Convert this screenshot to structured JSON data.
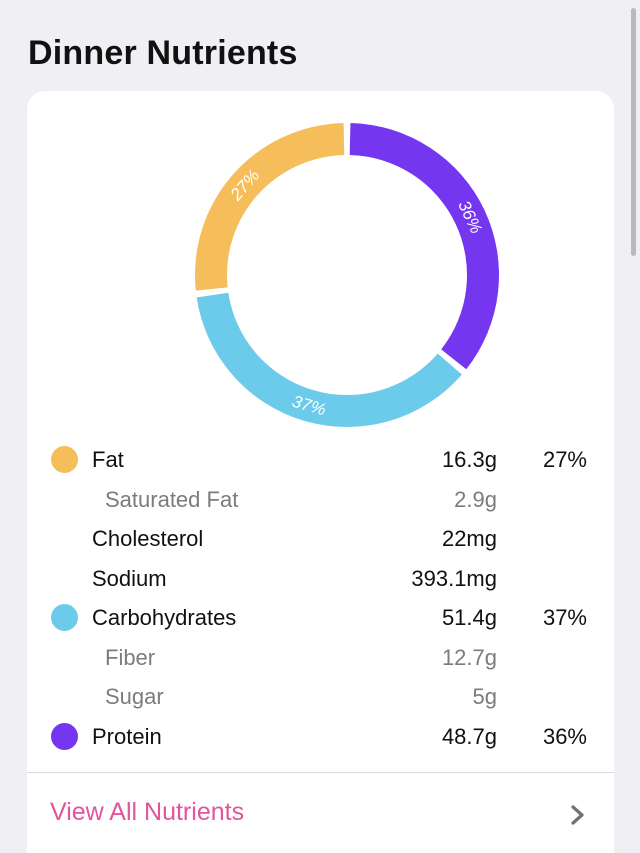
{
  "section": {
    "title": "Dinner Nutrients"
  },
  "colors": {
    "fat": "#f5be5b",
    "carbohydrates": "#6ccbea",
    "protein": "#7436ef",
    "link": "#e0559b",
    "chevron": "#707075"
  },
  "chart_data": {
    "type": "pie",
    "style": "donut",
    "slices": [
      {
        "label": "Protein",
        "value": 36,
        "display": "36%",
        "color": "#7436ef"
      },
      {
        "label": "Carbohydrates",
        "value": 37,
        "display": "37%",
        "color": "#6ccbea"
      },
      {
        "label": "Fat",
        "value": 27,
        "display": "27%",
        "color": "#f5be5b"
      }
    ]
  },
  "nutrients": [
    {
      "name": "Fat",
      "amount": "16.3g",
      "percent": "27%",
      "dot": "#f5be5b",
      "sub": false
    },
    {
      "name": "Saturated Fat",
      "amount": "2.9g",
      "percent": "",
      "dot": "",
      "sub": true
    },
    {
      "name": "Cholesterol",
      "amount": "22mg",
      "percent": "",
      "dot": "",
      "sub": false
    },
    {
      "name": "Sodium",
      "amount": "393.1mg",
      "percent": "",
      "dot": "",
      "sub": false
    },
    {
      "name": "Carbohydrates",
      "amount": "51.4g",
      "percent": "37%",
      "dot": "#6ccbea",
      "sub": false
    },
    {
      "name": "Fiber",
      "amount": "12.7g",
      "percent": "",
      "dot": "",
      "sub": true
    },
    {
      "name": "Sugar",
      "amount": "5g",
      "percent": "",
      "dot": "",
      "sub": true
    },
    {
      "name": "Protein",
      "amount": "48.7g",
      "percent": "36%",
      "dot": "#7436ef",
      "sub": false
    }
  ],
  "view_all": {
    "label": "View All Nutrients",
    "icon": "chevron-right-icon"
  }
}
